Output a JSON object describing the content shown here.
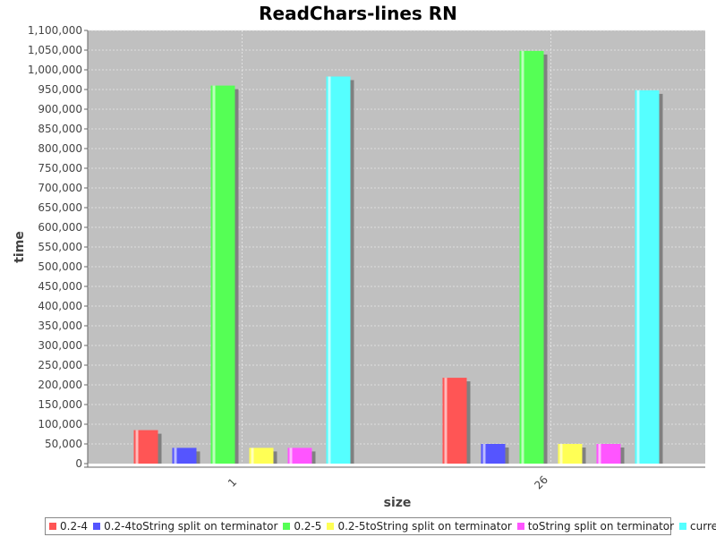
{
  "chart_data": {
    "type": "bar",
    "title": "ReadChars-lines RN",
    "xlabel": "size",
    "ylabel": "time",
    "categories": [
      "1",
      "26"
    ],
    "ylim": [
      0,
      1100000
    ],
    "ytick_step": 50000,
    "grid": true,
    "legend_position": "bottom",
    "series": [
      {
        "name": "0.2-4",
        "color": "#ff5555",
        "values": [
          85000,
          218000
        ]
      },
      {
        "name": "0.2-4toString split on terminator",
        "color": "#5555ff",
        "values": [
          40000,
          50000
        ]
      },
      {
        "name": "0.2-5",
        "color": "#55ff55",
        "values": [
          960000,
          1048000
        ]
      },
      {
        "name": "0.2-5toString split on terminator",
        "color": "#ffff55",
        "values": [
          40000,
          50000
        ]
      },
      {
        "name": "toString split on terminator",
        "color": "#ff55ff",
        "values": [
          40000,
          50000
        ]
      },
      {
        "name": "current",
        "color": "#55ffff",
        "values": [
          983000,
          948000
        ]
      }
    ]
  }
}
